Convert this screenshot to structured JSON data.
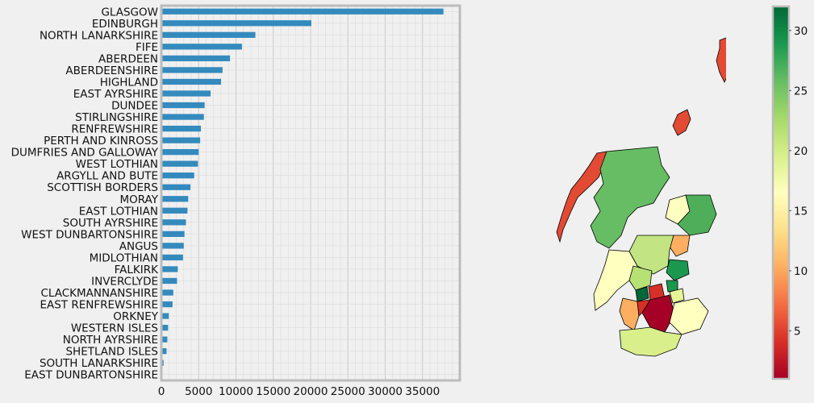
{
  "chart_data": [
    {
      "type": "bar",
      "orientation": "horizontal",
      "categories": [
        "GLASGOW",
        "EDINBURGH",
        "NORTH LANARKSHIRE",
        "FIFE",
        "ABERDEEN",
        "ABERDEENSHIRE",
        "HIGHLAND",
        "EAST AYRSHIRE",
        "DUNDEE",
        "STIRLINGSHIRE",
        "RENFREWSHIRE",
        "PERTH AND KINROSS",
        "DUMFRIES AND GALLOWAY",
        "WEST LOTHIAN",
        "ARGYLL AND BUTE",
        "SCOTTISH BORDERS",
        "MORAY",
        "EAST LOTHIAN",
        "SOUTH AYRSHIRE",
        "WEST DUNBARTONSHIRE",
        "ANGUS",
        "MIDLOTHIAN",
        "FALKIRK",
        "INVERCLYDE",
        "CLACKMANNANSHIRE",
        "EAST RENFREWSHIRE",
        "ORKNEY",
        "WESTERN ISLES",
        "NORTH AYRSHIRE",
        "SHETLAND ISLES",
        "SOUTH LANARKSHIRE",
        "EAST DUNBARTONSHIRE"
      ],
      "values": [
        37800,
        20100,
        12600,
        10800,
        9200,
        8200,
        8000,
        6600,
        5800,
        5700,
        5300,
        5200,
        5000,
        4900,
        4400,
        3900,
        3600,
        3500,
        3300,
        3100,
        3000,
        2900,
        2200,
        2100,
        1600,
        1500,
        1000,
        900,
        800,
        700,
        300,
        100
      ],
      "xticks": [
        "0",
        "5000",
        "10000",
        "15000",
        "20000",
        "25000",
        "30000",
        "35000"
      ],
      "xlim": [
        0,
        40000
      ],
      "bar_color": "#348abd",
      "grid": true
    },
    {
      "type": "choropleth",
      "colormap": "RdYlGn",
      "colorbar_ticks": [
        "5",
        "10",
        "15",
        "20",
        "25",
        "30"
      ],
      "colorbar_range": [
        1,
        32
      ]
    }
  ]
}
